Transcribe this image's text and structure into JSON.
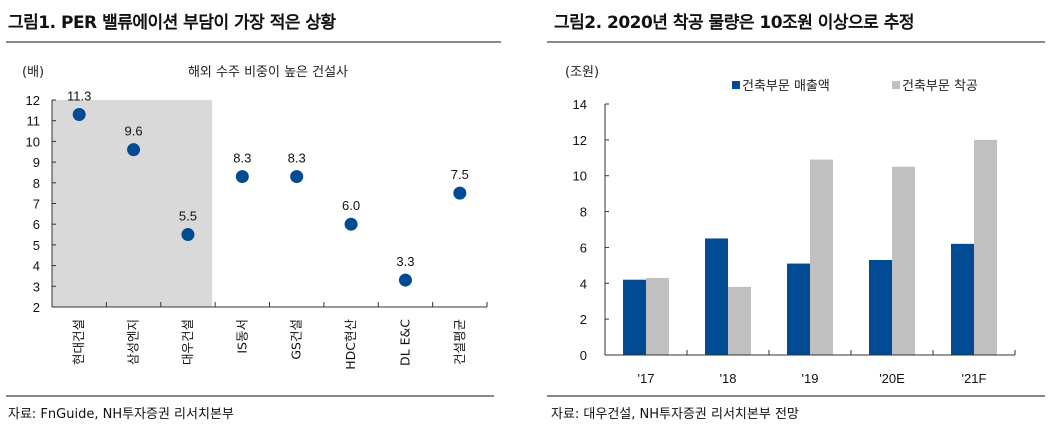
{
  "figure1": {
    "title": "그림1. PER 밸류에이션 부담이 가장 적은 상황",
    "source": "자료: FnGuide, NH투자증권 리서치본부"
  },
  "figure2": {
    "title": "그림2. 2020년 착공 물량은 10조원 이상으로 추정",
    "source": "자료: 대우건설, NH투자증권 리서치본부 전망"
  },
  "chart_data": [
    {
      "type": "scatter",
      "title": "그림1. PER 밸류에이션 부담이 가장 적은 상황",
      "ylabel": "(배)",
      "annotation": "해외 수주 비중이 높은 건설사",
      "highlight_categories": [
        "현대건설",
        "삼성엔지",
        "대우건설"
      ],
      "categories": [
        "현대건설",
        "삼성엔지",
        "대우건설",
        "IS동서",
        "GS건설",
        "HDC현산",
        "DL E&C",
        "건설평균"
      ],
      "values": [
        11.3,
        9.6,
        5.5,
        8.3,
        8.3,
        6.0,
        3.3,
        7.5
      ],
      "value_labels": [
        "11.3",
        "9.6",
        "5.5",
        "8.3",
        "8.3",
        "6.0",
        "3.3",
        "7.5"
      ],
      "ylim": [
        2,
        12
      ],
      "yticks": [
        2,
        3,
        4,
        5,
        6,
        7,
        8,
        9,
        10,
        11,
        12
      ],
      "grid": false,
      "colors": {
        "point": "#004b93",
        "highlight": "#d9d9d9"
      }
    },
    {
      "type": "bar",
      "title": "그림2. 2020년 착공 물량은 10조원 이상으로 추정",
      "ylabel": "(조원)",
      "categories": [
        "'17",
        "'18",
        "'19",
        "'20E",
        "'21F"
      ],
      "series": [
        {
          "name": "건축부문 매출액",
          "values": [
            4.2,
            6.5,
            5.1,
            5.3,
            6.2
          ],
          "color": "#004b93"
        },
        {
          "name": "건축부문 착공",
          "values": [
            4.3,
            3.8,
            10.9,
            10.5,
            12.0
          ],
          "color": "#c0c0c0"
        }
      ],
      "ylim": [
        0,
        14
      ],
      "yticks": [
        0,
        2,
        4,
        6,
        8,
        10,
        12,
        14
      ],
      "grid": false,
      "legend": "top-right"
    }
  ]
}
